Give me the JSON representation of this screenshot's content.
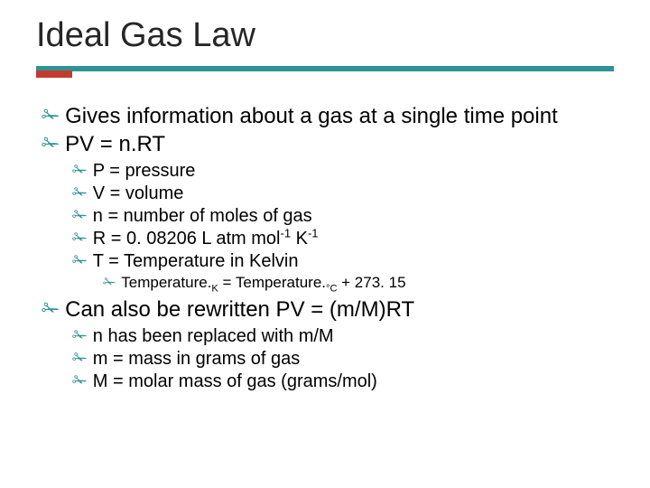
{
  "title": "Ideal Gas Law",
  "colors": {
    "accent_bar": "#2f9393",
    "accent_cap": "#c43a2e",
    "bullet": "#2f9393",
    "text": "#000000",
    "title_text": "#262626",
    "background": "#ffffff"
  },
  "bullet_glyph": "✁",
  "level1": [
    "Gives information about a gas at a single time point",
    "PV = n.RT",
    "Can also be rewritten  PV = (m/M)RT"
  ],
  "defs": {
    "p": "P = pressure",
    "v": "V = volume",
    "n": "n = number of moles of gas",
    "r_pre": "R = 0. 08206 L atm mol",
    "r_sup1": "-1",
    "r_mid": " K",
    "r_sup2": "-1",
    "t": "T = Temperature in Kelvin"
  },
  "temp_conv": {
    "pre": "Temperature.",
    "sub1": "K",
    "mid": " = Temperature.",
    "sub2": "°C",
    "post": " + 273. 15"
  },
  "rewrite_defs": {
    "n": "n has been replaced with m/M",
    "m": "m = mass in grams of gas",
    "M": "M = molar mass of gas (grams/mol)"
  }
}
